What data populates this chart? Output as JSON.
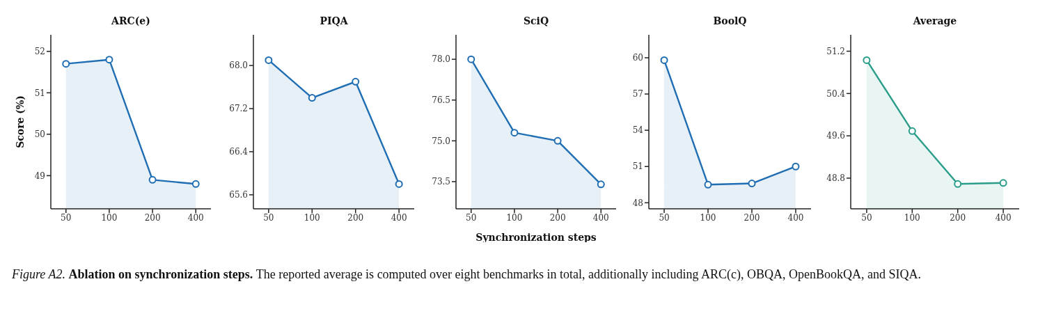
{
  "chart_data": [
    {
      "type": "area",
      "title": "ARC(e)",
      "ylabel": "Score (%)",
      "categories": [
        "50",
        "100",
        "200",
        "400"
      ],
      "series": [
        {
          "color": "#1f6eb4",
          "values": [
            51.7,
            51.8,
            48.9,
            48.8
          ]
        }
      ],
      "ylim": [
        48.2,
        52.4
      ],
      "yticks": [
        49,
        50,
        51,
        52
      ],
      "grid": false,
      "legend": false,
      "marker": "circle",
      "line_style": "solid",
      "annotations": [
        "Figure A2.",
        "Ablation on synchronization steps.",
        "The reported average is computed over eight benchmarks in total, additionally including ARC(c), OBQA, OpenBookQA, and SIQA."
      ]
    },
    {
      "type": "area",
      "title": "PIQA",
      "categories": [
        "50",
        "100",
        "200",
        "400"
      ],
      "series": [
        {
          "color": "#1f6eb4",
          "values": [
            68.1,
            67.4,
            67.7,
            65.8
          ]
        }
      ],
      "ylim": [
        65.34,
        68.57
      ],
      "yticks": [
        {
          "value": 65.6,
          "label": "65.6"
        },
        {
          "value": 66.4,
          "label": "66.4"
        },
        {
          "value": 67.2,
          "label": "67.2"
        },
        {
          "value": 68,
          "label": "68.0"
        }
      ],
      "grid": false,
      "legend": false,
      "marker": "circle",
      "line_style": "solid"
    },
    {
      "type": "area",
      "title": "SciQ",
      "xlabel": "Synchronization steps",
      "categories": [
        "50",
        "100",
        "200",
        "400"
      ],
      "series": [
        {
          "color": "#1f6eb4",
          "values": [
            78.0,
            75.3,
            75.0,
            73.4
          ]
        }
      ],
      "ylim": [
        72.5,
        78.9
      ],
      "yticks": [
        {
          "value": 73.5,
          "label": "73.5"
        },
        {
          "value": 75,
          "label": "75.0"
        },
        {
          "value": 76.5,
          "label": "76.5"
        },
        {
          "value": 78,
          "label": "78.0"
        }
      ],
      "grid": false,
      "legend": false,
      "marker": "circle",
      "line_style": "solid"
    },
    {
      "type": "area",
      "title": "BoolQ",
      "categories": [
        "50",
        "100",
        "200",
        "400"
      ],
      "series": [
        {
          "color": "#1f6eb4",
          "values": [
            59.8,
            49.5,
            49.6,
            51.0
          ]
        }
      ],
      "ylim": [
        47.5,
        61.9
      ],
      "yticks": [
        48,
        51,
        54,
        57,
        60
      ],
      "grid": false,
      "legend": false,
      "marker": "circle",
      "line_style": "solid"
    },
    {
      "type": "area",
      "title": "Average",
      "categories": [
        "50",
        "100",
        "200",
        "400"
      ],
      "series": [
        {
          "color": "#2a9d8a",
          "values": [
            51.03,
            49.69,
            48.69,
            48.71
          ]
        }
      ],
      "ylim": [
        48.22,
        51.51
      ],
      "yticks": [
        48.8,
        49.6,
        50.4,
        51.2
      ],
      "grid": false,
      "legend": false,
      "marker": "circle",
      "line_style": "solid"
    }
  ]
}
